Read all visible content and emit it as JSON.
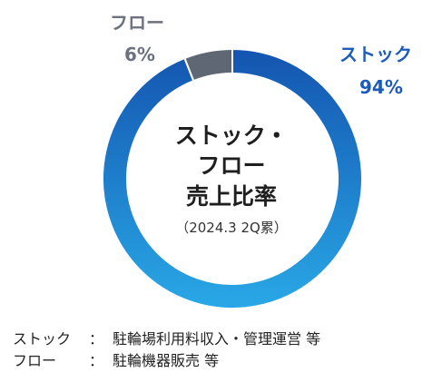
{
  "chart_data": {
    "type": "pie",
    "donut": true,
    "title_lines": [
      "ストック・",
      "フロー",
      "売上比率"
    ],
    "subtitle": "（2024.3  2Q累）",
    "categories": [
      "ストック",
      "フロー"
    ],
    "values": [
      94,
      6
    ],
    "value_labels": [
      "94%",
      "6%"
    ],
    "colors": {
      "stock_gradient_top": "#1454b0",
      "stock_gradient_bottom": "#29a8e6",
      "flow": "#5f6775"
    }
  },
  "legend": [
    {
      "term": "ストック",
      "colon": "：",
      "description": "駐輪場利用料収入・管理運営 等"
    },
    {
      "term": "フロー",
      "colon": "：",
      "description": "駐輪機器販売 等"
    }
  ]
}
